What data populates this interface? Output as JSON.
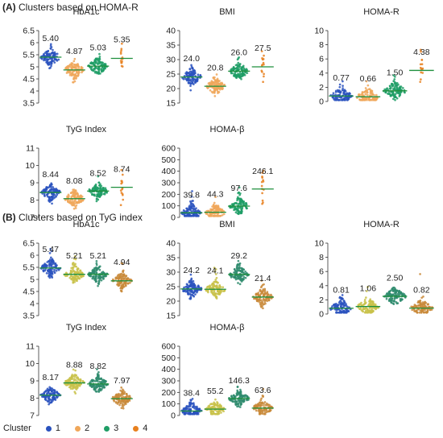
{
  "sections": [
    {
      "letter": "(A)",
      "title": "Clusters based on  HOMA-R"
    },
    {
      "letter": "(B)",
      "title": "Clusters based on TyG index"
    }
  ],
  "colors": {
    "1": "#2a52be",
    "2": "#f0a75a",
    "3": "#1f9e66",
    "4": "#e8801e"
  },
  "colors_B": {
    "1": "#2a52be",
    "2": "#c9c24a",
    "3": "#2e8b6d",
    "4": "#c98a3a"
  },
  "legend": {
    "title": "Cluster",
    "items": [
      "1",
      "2",
      "3",
      "4"
    ]
  },
  "chart_data": [
    {
      "type": "scatter",
      "panel": "A",
      "title": "HbA1c",
      "yticks": [
        3.5,
        4,
        4.5,
        5,
        5.5,
        6,
        6.5
      ],
      "ylim": [
        3.5,
        6.5
      ],
      "series": [
        {
          "name": "1",
          "center": 5.4
        },
        {
          "name": "2",
          "center": 4.87
        },
        {
          "name": "3",
          "center": 5.03
        },
        {
          "name": "4",
          "center": 5.35
        }
      ],
      "labels": [
        "5.40",
        "4.87",
        "5.03",
        "5.35"
      ]
    },
    {
      "type": "scatter",
      "panel": "A",
      "title": "BMI",
      "yticks": [
        15,
        20,
        25,
        30,
        35,
        40
      ],
      "ylim": [
        15,
        40
      ],
      "series": [
        {
          "name": "1",
          "center": 24.0
        },
        {
          "name": "2",
          "center": 20.8
        },
        {
          "name": "3",
          "center": 26.0
        },
        {
          "name": "4",
          "center": 27.5
        }
      ],
      "labels": [
        "24.0",
        "20.8",
        "26.0",
        "27.5"
      ]
    },
    {
      "type": "scatter",
      "panel": "A",
      "title": "HOMA-R",
      "yticks": [
        0,
        2,
        4,
        6,
        8,
        10
      ],
      "ylim": [
        0,
        10
      ],
      "series": [
        {
          "name": "1",
          "center": 0.77
        },
        {
          "name": "2",
          "center": 0.66
        },
        {
          "name": "3",
          "center": 1.5
        },
        {
          "name": "4",
          "center": 4.38
        }
      ],
      "labels": [
        "0.77",
        "0.66",
        "1.50",
        "4.38"
      ]
    },
    {
      "type": "scatter",
      "panel": "A",
      "title": "TyG Index",
      "yticks": [
        7,
        8,
        9,
        10,
        11
      ],
      "ylim": [
        7,
        11
      ],
      "series": [
        {
          "name": "1",
          "center": 8.44
        },
        {
          "name": "2",
          "center": 8.08
        },
        {
          "name": "3",
          "center": 8.52
        },
        {
          "name": "4",
          "center": 8.74
        }
      ],
      "labels": [
        "8.44",
        "8.08",
        "8.52",
        "8.74"
      ]
    },
    {
      "type": "scatter",
      "panel": "A",
      "title": "HOMA-β",
      "yticks": [
        0,
        100,
        200,
        300,
        400,
        500,
        600
      ],
      "ylim": [
        0,
        600
      ],
      "series": [
        {
          "name": "1",
          "center": 39.8
        },
        {
          "name": "2",
          "center": 44.3
        },
        {
          "name": "3",
          "center": 97.6
        },
        {
          "name": "4",
          "center": 246.1
        }
      ],
      "labels": [
        "39.8",
        "44.3",
        "97.6",
        "246.1"
      ]
    },
    {
      "type": "scatter",
      "panel": "B",
      "title": "HbA1c",
      "yticks": [
        3.5,
        4,
        4.5,
        5,
        5.5,
        6,
        6.5
      ],
      "ylim": [
        3.5,
        6.5
      ],
      "series": [
        {
          "name": "1",
          "center": 5.47
        },
        {
          "name": "2",
          "center": 5.21
        },
        {
          "name": "3",
          "center": 5.21
        },
        {
          "name": "4",
          "center": 4.94
        }
      ],
      "labels": [
        "5.47",
        "5.21",
        "5.21",
        "4.94"
      ]
    },
    {
      "type": "scatter",
      "panel": "B",
      "title": "BMI",
      "yticks": [
        15,
        20,
        25,
        30,
        35,
        40
      ],
      "ylim": [
        15,
        40
      ],
      "series": [
        {
          "name": "1",
          "center": 24.2
        },
        {
          "name": "2",
          "center": 24.1
        },
        {
          "name": "3",
          "center": 29.2
        },
        {
          "name": "4",
          "center": 21.4
        }
      ],
      "labels": [
        "24.2",
        "24.1",
        "29.2",
        "21.4"
      ]
    },
    {
      "type": "scatter",
      "panel": "B",
      "title": "HOMA-R",
      "yticks": [
        0,
        2,
        4,
        6,
        8,
        10
      ],
      "ylim": [
        0,
        10
      ],
      "series": [
        {
          "name": "1",
          "center": 0.81
        },
        {
          "name": "2",
          "center": 1.06
        },
        {
          "name": "3",
          "center": 2.5
        },
        {
          "name": "4",
          "center": 0.82
        }
      ],
      "labels": [
        "0.81",
        "1.06",
        "2.50",
        "0.82"
      ]
    },
    {
      "type": "scatter",
      "panel": "B",
      "title": "TyG Index",
      "yticks": [
        7,
        8,
        9,
        10,
        11
      ],
      "ylim": [
        7,
        11
      ],
      "series": [
        {
          "name": "1",
          "center": 8.17
        },
        {
          "name": "2",
          "center": 8.88
        },
        {
          "name": "3",
          "center": 8.82
        },
        {
          "name": "4",
          "center": 7.97
        }
      ],
      "labels": [
        "8.17",
        "8.88",
        "8.82",
        "7.97"
      ]
    },
    {
      "type": "scatter",
      "panel": "B",
      "title": "HOMA-β",
      "yticks": [
        0,
        100,
        200,
        300,
        400,
        500,
        600
      ],
      "ylim": [
        0,
        600
      ],
      "series": [
        {
          "name": "1",
          "center": 38.4
        },
        {
          "name": "2",
          "center": 55.2
        },
        {
          "name": "3",
          "center": 146.3
        },
        {
          "name": "4",
          "center": 63.6
        }
      ],
      "labels": [
        "38.4",
        "55.2",
        "146.3",
        "63.6"
      ]
    }
  ]
}
